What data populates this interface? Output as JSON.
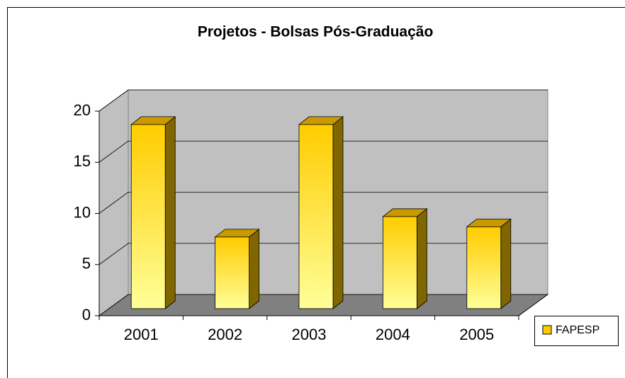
{
  "chart_data": {
    "type": "bar",
    "title": "Projetos - Bolsas Pós-Graduação",
    "categories": [
      "2001",
      "2002",
      "2003",
      "2004",
      "2005"
    ],
    "series": [
      {
        "name": "FAPESP",
        "color": "#ffcc00",
        "values": [
          18,
          7,
          18,
          9,
          8
        ]
      }
    ],
    "ylim": [
      0,
      20
    ],
    "yticks": [
      0,
      5,
      10,
      15,
      20
    ],
    "grid": true,
    "legend": "right"
  }
}
